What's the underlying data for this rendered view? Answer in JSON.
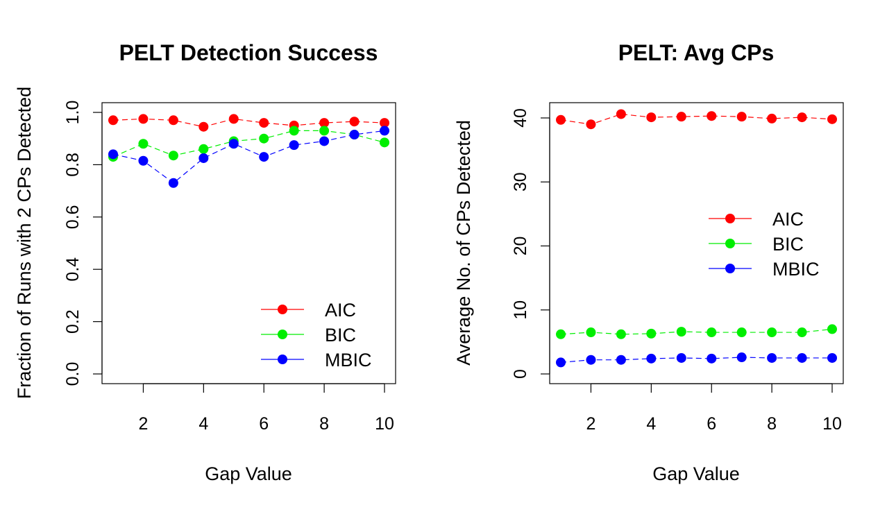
{
  "chart_data": [
    {
      "type": "line",
      "title": "PELT Detection Success",
      "xlabel": "Gap Value",
      "ylabel": "Fraction of Runs with 2 CPs Detected",
      "x": [
        1,
        2,
        3,
        4,
        5,
        6,
        7,
        8,
        9,
        10
      ],
      "xlim": [
        1,
        10
      ],
      "ylim": [
        0,
        1
      ],
      "xticks": [
        2,
        4,
        6,
        8,
        10
      ],
      "yticks": [
        0.0,
        0.2,
        0.4,
        0.6,
        0.8,
        1.0
      ],
      "ytick_labels": [
        "0.0",
        "0.2",
        "0.4",
        "0.6",
        "0.8",
        "1.0"
      ],
      "grid": false,
      "legend_position": "bottom-right",
      "series": [
        {
          "name": "AIC",
          "color": "#ff0000",
          "values": [
            0.97,
            0.975,
            0.97,
            0.945,
            0.975,
            0.96,
            0.95,
            0.96,
            0.965,
            0.96
          ]
        },
        {
          "name": "BIC",
          "color": "#00ee00",
          "values": [
            0.83,
            0.88,
            0.835,
            0.86,
            0.89,
            0.9,
            0.93,
            0.93,
            0.915,
            0.885
          ]
        },
        {
          "name": "MBIC",
          "color": "#0000ff",
          "values": [
            0.84,
            0.815,
            0.73,
            0.825,
            0.88,
            0.83,
            0.875,
            0.89,
            0.915,
            0.93
          ]
        }
      ]
    },
    {
      "type": "line",
      "title": "PELT: Avg CPs",
      "xlabel": "Gap Value",
      "ylabel": "Average No. of CPs Detected",
      "x": [
        1,
        2,
        3,
        4,
        5,
        6,
        7,
        8,
        9,
        10
      ],
      "xlim": [
        1,
        10
      ],
      "ylim": [
        0,
        40
      ],
      "xticks": [
        2,
        4,
        6,
        8,
        10
      ],
      "yticks": [
        0,
        10,
        20,
        30,
        40
      ],
      "ytick_labels": [
        "0",
        "10",
        "20",
        "30",
        "40"
      ],
      "grid": false,
      "legend_position": "middle-right",
      "series": [
        {
          "name": "AIC",
          "color": "#ff0000",
          "values": [
            39.7,
            39.0,
            40.6,
            40.1,
            40.2,
            40.3,
            40.2,
            39.9,
            40.1,
            39.8
          ]
        },
        {
          "name": "BIC",
          "color": "#00ee00",
          "values": [
            6.2,
            6.5,
            6.2,
            6.3,
            6.6,
            6.5,
            6.5,
            6.5,
            6.5,
            7.0
          ]
        },
        {
          "name": "MBIC",
          "color": "#0000ff",
          "values": [
            1.8,
            2.2,
            2.2,
            2.4,
            2.5,
            2.4,
            2.6,
            2.5,
            2.5,
            2.5
          ]
        }
      ]
    }
  ]
}
